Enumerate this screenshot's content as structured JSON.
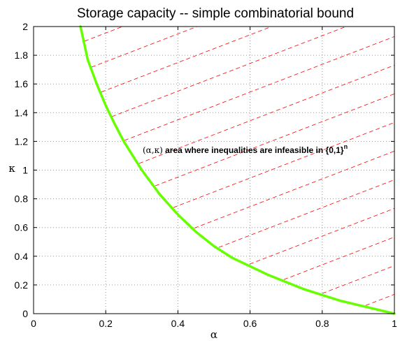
{
  "chart_data": {
    "type": "line",
    "title": "Storage capacity -- simple combinatorial bound",
    "xlabel": "α",
    "ylabel": "κ",
    "xlim": [
      0,
      1
    ],
    "ylim": [
      0,
      2
    ],
    "xticks": [
      0,
      0.2,
      0.4,
      0.6,
      0.8,
      1
    ],
    "xtick_labels": [
      "0",
      "0.2",
      "0.4",
      "0.6",
      "0.8",
      "1"
    ],
    "yticks": [
      0,
      0.2,
      0.4,
      0.6,
      0.8,
      1,
      1.2,
      1.4,
      1.6,
      1.8,
      2
    ],
    "ytick_labels": [
      "0",
      "0.2",
      "0.4",
      "0.6",
      "0.8",
      "1",
      "1.2",
      "1.4",
      "1.6",
      "1.8",
      "2"
    ],
    "grid": true,
    "series": [
      {
        "color": "#66ff00",
        "x": [
          0.13,
          0.15,
          0.175,
          0.2,
          0.225,
          0.25,
          0.275,
          0.3,
          0.35,
          0.4,
          0.45,
          0.5,
          0.55,
          0.6,
          0.65,
          0.7,
          0.75,
          0.8,
          0.85,
          0.9,
          0.95,
          1.0
        ],
        "y": [
          2.0,
          1.77,
          1.6,
          1.45,
          1.32,
          1.2,
          1.1,
          1.0,
          0.83,
          0.69,
          0.57,
          0.47,
          0.39,
          0.33,
          0.27,
          0.22,
          0.17,
          0.13,
          0.09,
          0.06,
          0.03,
          0.0
        ]
      }
    ],
    "hatch": {
      "color": "#ff0000",
      "style": "dashed",
      "region": "above curve"
    },
    "annotation": {
      "prefix": "(α,κ)",
      "text": " area where inequalities are infeasible in {0,1}",
      "superscript": "n"
    }
  }
}
